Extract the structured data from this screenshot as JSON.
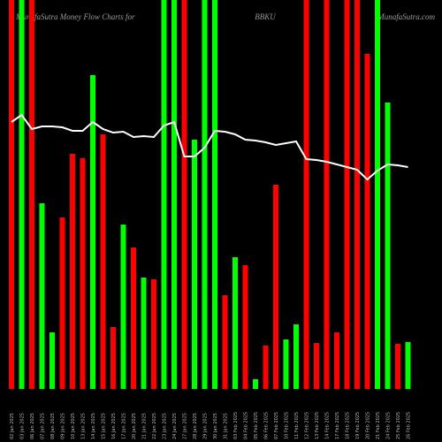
{
  "chart_data": {
    "type": "bar",
    "title": "BBKU",
    "header_left": "MunafaSutra  Money Flow  Charts for",
    "header_right": "MunafaSutra.com",
    "categories": [
      "02 Jan 2025",
      "03 Jan 2025",
      "06 Jan 2025",
      "07 Jan 2025",
      "08 Jan 2025",
      "09 Jan 2025",
      "10 Jan 2025",
      "13 Jan 2025",
      "14 Jan 2025",
      "15 Jan 2025",
      "16 Jan 2025",
      "17 Jan 2025",
      "20 Jan 2025",
      "21 Jan 2025",
      "22 Jan 2025",
      "23 Jan 2025",
      "24 Jan 2025",
      "27 Jan 2025",
      "28 Jan 2025",
      "29 Jan 2025",
      "30 Jan 2025",
      "31 Jan 2025",
      "03 Feb 2025",
      "04 Feb 2025",
      "05 Feb 2025",
      "06 Feb 2025",
      "07 Feb 2025",
      "10 Feb 2025",
      "11 Feb 2025",
      "12 Feb 2025",
      "13 Feb 2025",
      "14 Feb 2025",
      "17 Feb 2025",
      "18 Feb 2025",
      "19 Feb 2025",
      "20 Feb 2025",
      "21 Feb 2025",
      "24 Feb 2025",
      "25 Feb 2025",
      "26 Feb 2025"
    ],
    "values": [
      440,
      440,
      440,
      210,
      64,
      194,
      266,
      261,
      355,
      288,
      70,
      186,
      160,
      126,
      124,
      440,
      440,
      440,
      282,
      440,
      440,
      106,
      149,
      140,
      11,
      49,
      231,
      56,
      73,
      440,
      52,
      440,
      64,
      440,
      440,
      379,
      440,
      324,
      51,
      53
    ],
    "colors": [
      "#ff0000",
      "#00ff00",
      "#ff0000",
      "#00ff00",
      "#00ff00",
      "#ff0000",
      "#ff0000",
      "#ff0000",
      "#00ff00",
      "#ff0000",
      "#ff0000",
      "#00ff00",
      "#ff0000",
      "#00ff00",
      "#ff0000",
      "#00ff00",
      "#00ff00",
      "#ff0000",
      "#00ff00",
      "#00ff00",
      "#00ff00",
      "#ff0000",
      "#00ff00",
      "#ff0000",
      "#00ff00",
      "#ff0000",
      "#ff0000",
      "#00ff00",
      "#00ff00",
      "#ff0000",
      "#ff0000",
      "#ff0000",
      "#ff0000",
      "#ff0000",
      "#ff0000",
      "#ff0000",
      "#00ff00",
      "#00ff00",
      "#ff0000",
      "#00ff00"
    ],
    "line": {
      "color": "#ffffff",
      "values": [
        302,
        310,
        294,
        297,
        297,
        296,
        292,
        292,
        302,
        294,
        290,
        291,
        285,
        286,
        285,
        298,
        302,
        263,
        263,
        273,
        292,
        291,
        288,
        282,
        281,
        279,
        276,
        278,
        280,
        260,
        259,
        257,
        254,
        251,
        248,
        237,
        247,
        254,
        253,
        251
      ]
    },
    "ylim": [
      0,
      440
    ]
  }
}
